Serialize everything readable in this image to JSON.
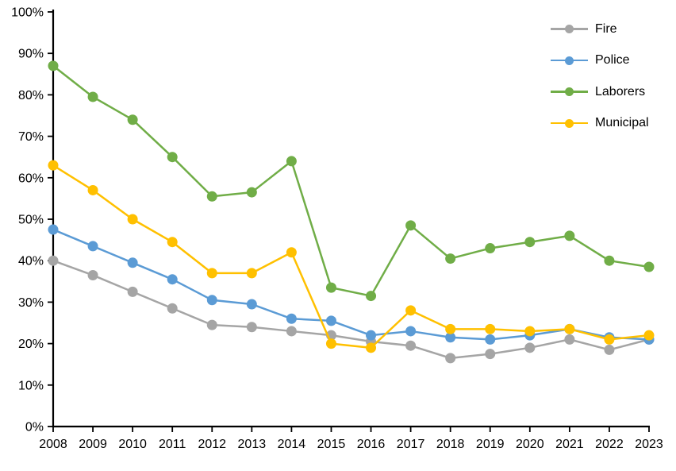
{
  "chart_data": {
    "type": "line",
    "title": "",
    "xlabel": "",
    "ylabel": "",
    "x_labels": [
      "2008",
      "2009",
      "2010",
      "2011",
      "2012",
      "2013",
      "2014",
      "2015",
      "2016",
      "2017",
      "2018",
      "2019",
      "2020",
      "2021",
      "2022",
      "2023"
    ],
    "series": [
      {
        "name": "Fire",
        "color": "#A5A5A5",
        "values": [
          40,
          36.5,
          32.5,
          28.5,
          24.5,
          24,
          23,
          22,
          20.5,
          19.5,
          16.5,
          17.5,
          19,
          21,
          18.5,
          21
        ]
      },
      {
        "name": "Police",
        "color": "#5B9BD5",
        "values": [
          47.5,
          43.5,
          39.5,
          35.5,
          30.5,
          29.5,
          26,
          25.5,
          22,
          23,
          21.5,
          21,
          22,
          23.5,
          21.5,
          21
        ]
      },
      {
        "name": "Laborers",
        "color": "#70AD47",
        "values": [
          87,
          79.5,
          74,
          65,
          55.5,
          56.5,
          64,
          33.5,
          31.5,
          48.5,
          40.5,
          43,
          44.5,
          46,
          40,
          38.5
        ]
      },
      {
        "name": "Municipal",
        "color": "#FFC000",
        "values": [
          63,
          57,
          50,
          44.5,
          37,
          37,
          42,
          20,
          19,
          28,
          23.5,
          23.5,
          23,
          23.5,
          21,
          22
        ]
      }
    ],
    "ylim": [
      0,
      100
    ],
    "ytick_step": 10,
    "ytick_suffix": "%",
    "grid": false,
    "legend_position": "top-right",
    "axis_color": "#000000",
    "text_color": "#000000"
  }
}
